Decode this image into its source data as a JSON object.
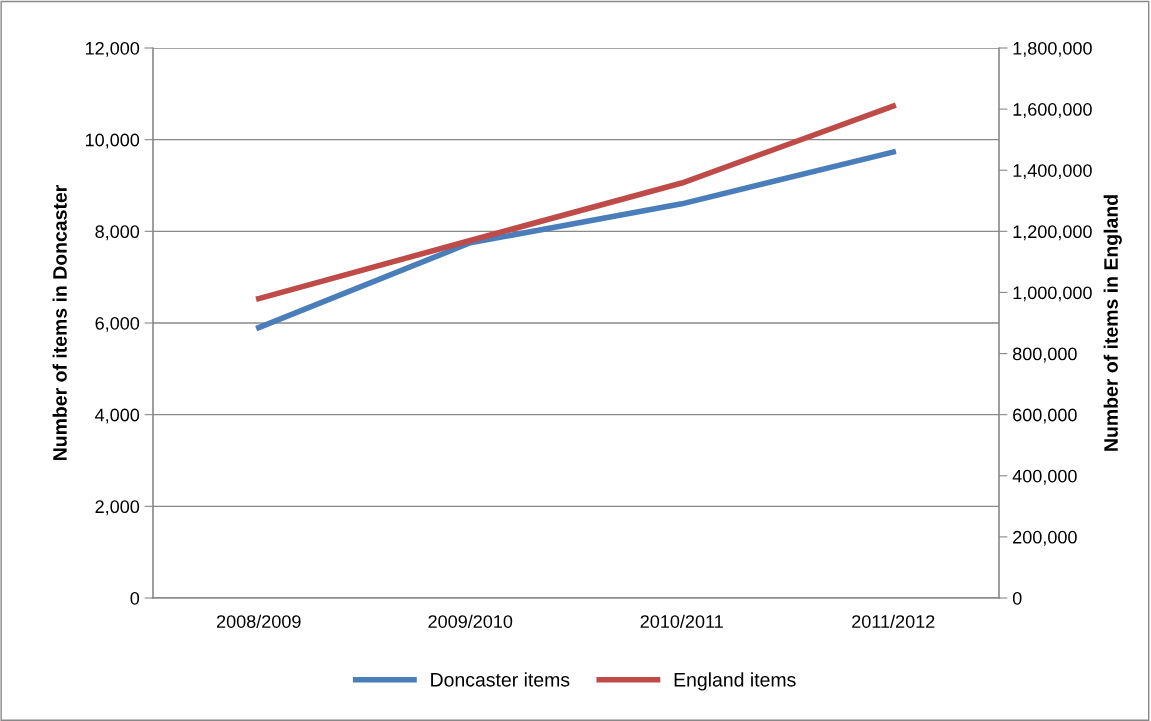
{
  "chart_data": {
    "type": "line",
    "categories": [
      "2008/2009",
      "2009/2010",
      "2010/2011",
      "2011/2012"
    ],
    "ylabel": "Number of items in Doncaster",
    "y2label": "Number of items in England",
    "series": [
      {
        "name": "Doncaster items",
        "color": "#4a7ebb",
        "values": [
          5900,
          7750,
          8600,
          9730
        ]
      },
      {
        "name": "England items",
        "color": "#be4b48",
        "values": [
          980000,
          1170000,
          1358000,
          1610000
        ],
        "axis": "y2"
      }
    ],
    "ylim": [
      0,
      12000
    ],
    "yticks": [
      {
        "value": 0,
        "label": "0"
      },
      {
        "value": 2000,
        "label": "2,000"
      },
      {
        "value": 4000,
        "label": "4,000"
      },
      {
        "value": 6000,
        "label": "6,000"
      },
      {
        "value": 8000,
        "label": "8,000"
      },
      {
        "value": 10000,
        "label": "10,000"
      },
      {
        "value": 12000,
        "label": "12,000"
      }
    ],
    "y2lim": [
      0,
      1800000
    ],
    "y2ticks": [
      {
        "value": 0,
        "label": "0"
      },
      {
        "value": 200000,
        "label": "200,000"
      },
      {
        "value": 400000,
        "label": "400,000"
      },
      {
        "value": 600000,
        "label": "600,000"
      },
      {
        "value": 800000,
        "label": "800,000"
      },
      {
        "value": 1000000,
        "label": "1,000,000"
      },
      {
        "value": 1200000,
        "label": "1,200,000"
      },
      {
        "value": 1400000,
        "label": "1,400,000"
      },
      {
        "value": 1600000,
        "label": "1,600,000"
      },
      {
        "value": 1800000,
        "label": "1,800,000"
      }
    ],
    "grid": "y",
    "legend": "bottom",
    "marker": "none",
    "line_style": "solid"
  }
}
